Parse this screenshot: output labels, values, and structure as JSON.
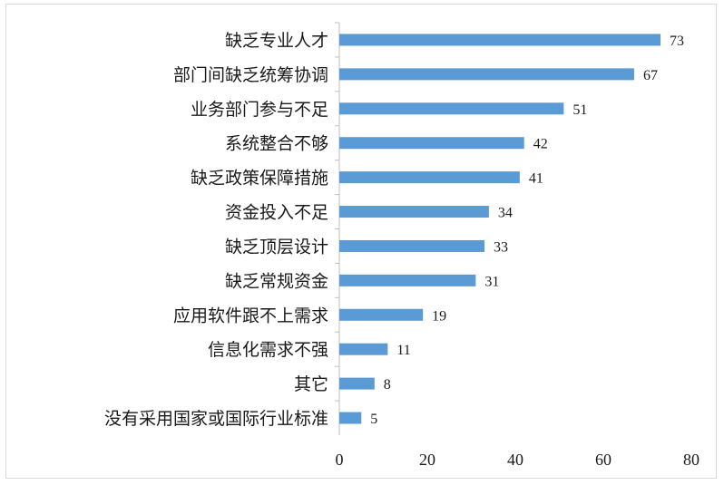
{
  "chart_data": {
    "type": "bar",
    "orientation": "horizontal",
    "categories": [
      "缺乏专业人才",
      "部门间缺乏统筹协调",
      "业务部门参与不足",
      "系统整合不够",
      "缺乏政策保障措施",
      "资金投入不足",
      "缺乏顶层设计",
      "缺乏常规资金",
      "应用软件跟不上需求",
      "信息化需求不强",
      "其它",
      "没有采用国家或国际行业标准"
    ],
    "values": [
      73,
      67,
      51,
      42,
      41,
      34,
      33,
      31,
      19,
      11,
      8,
      5
    ],
    "data_labels": [
      "73",
      "67",
      "51",
      "42",
      "41",
      "34",
      "33",
      "31",
      "19",
      "11",
      "8",
      "5"
    ],
    "x_ticks": [
      "0",
      "20",
      "40",
      "60",
      "80"
    ],
    "xlim": [
      0,
      80
    ],
    "title": "",
    "xlabel": "",
    "ylabel": "",
    "grid": false,
    "bar_color": "#5b9bd5",
    "axis_color": "#bfbfbf"
  }
}
